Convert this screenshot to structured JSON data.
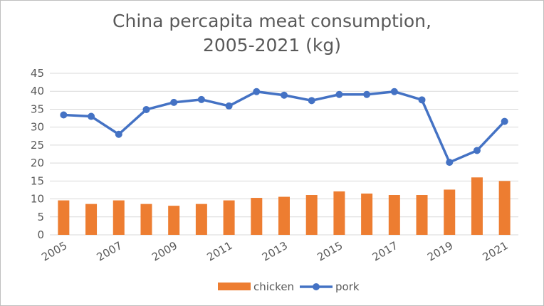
{
  "chart_data": {
    "type": "bar+line",
    "title_line1": "China percapita meat consumption,",
    "title_line2": "2005-2021 (kg)",
    "xlabel": "",
    "ylabel": "",
    "ylim": [
      0,
      45
    ],
    "yticks": [
      "0",
      "5",
      "10",
      "15",
      "20",
      "25",
      "30",
      "35",
      "40",
      "45"
    ],
    "categories": [
      "2005",
      "2006",
      "2007",
      "2008",
      "2009",
      "2010",
      "2011",
      "2012",
      "2013",
      "2014",
      "2015",
      "2016",
      "2017",
      "2018",
      "2019",
      "2020",
      "2021"
    ],
    "xtick_labels_shown": [
      "2005",
      "2007",
      "2009",
      "2011",
      "2013",
      "2015",
      "2017",
      "2019",
      "2021"
    ],
    "grid": true,
    "legend_position": "bottom",
    "series": [
      {
        "name": "chicken",
        "kind": "bar",
        "color": "#ED7D31",
        "values": [
          9.6,
          8.6,
          9.6,
          8.6,
          8.1,
          8.6,
          9.6,
          10.3,
          10.6,
          11.1,
          12.1,
          11.5,
          11.1,
          11.1,
          12.6,
          16.0,
          15.0
        ]
      },
      {
        "name": "pork",
        "kind": "line",
        "color": "#4472C4",
        "values": [
          33.4,
          33.0,
          28.0,
          34.9,
          36.9,
          37.7,
          35.9,
          39.9,
          38.9,
          37.4,
          39.1,
          39.1,
          39.9,
          37.6,
          20.2,
          23.5,
          31.6
        ]
      }
    ]
  }
}
